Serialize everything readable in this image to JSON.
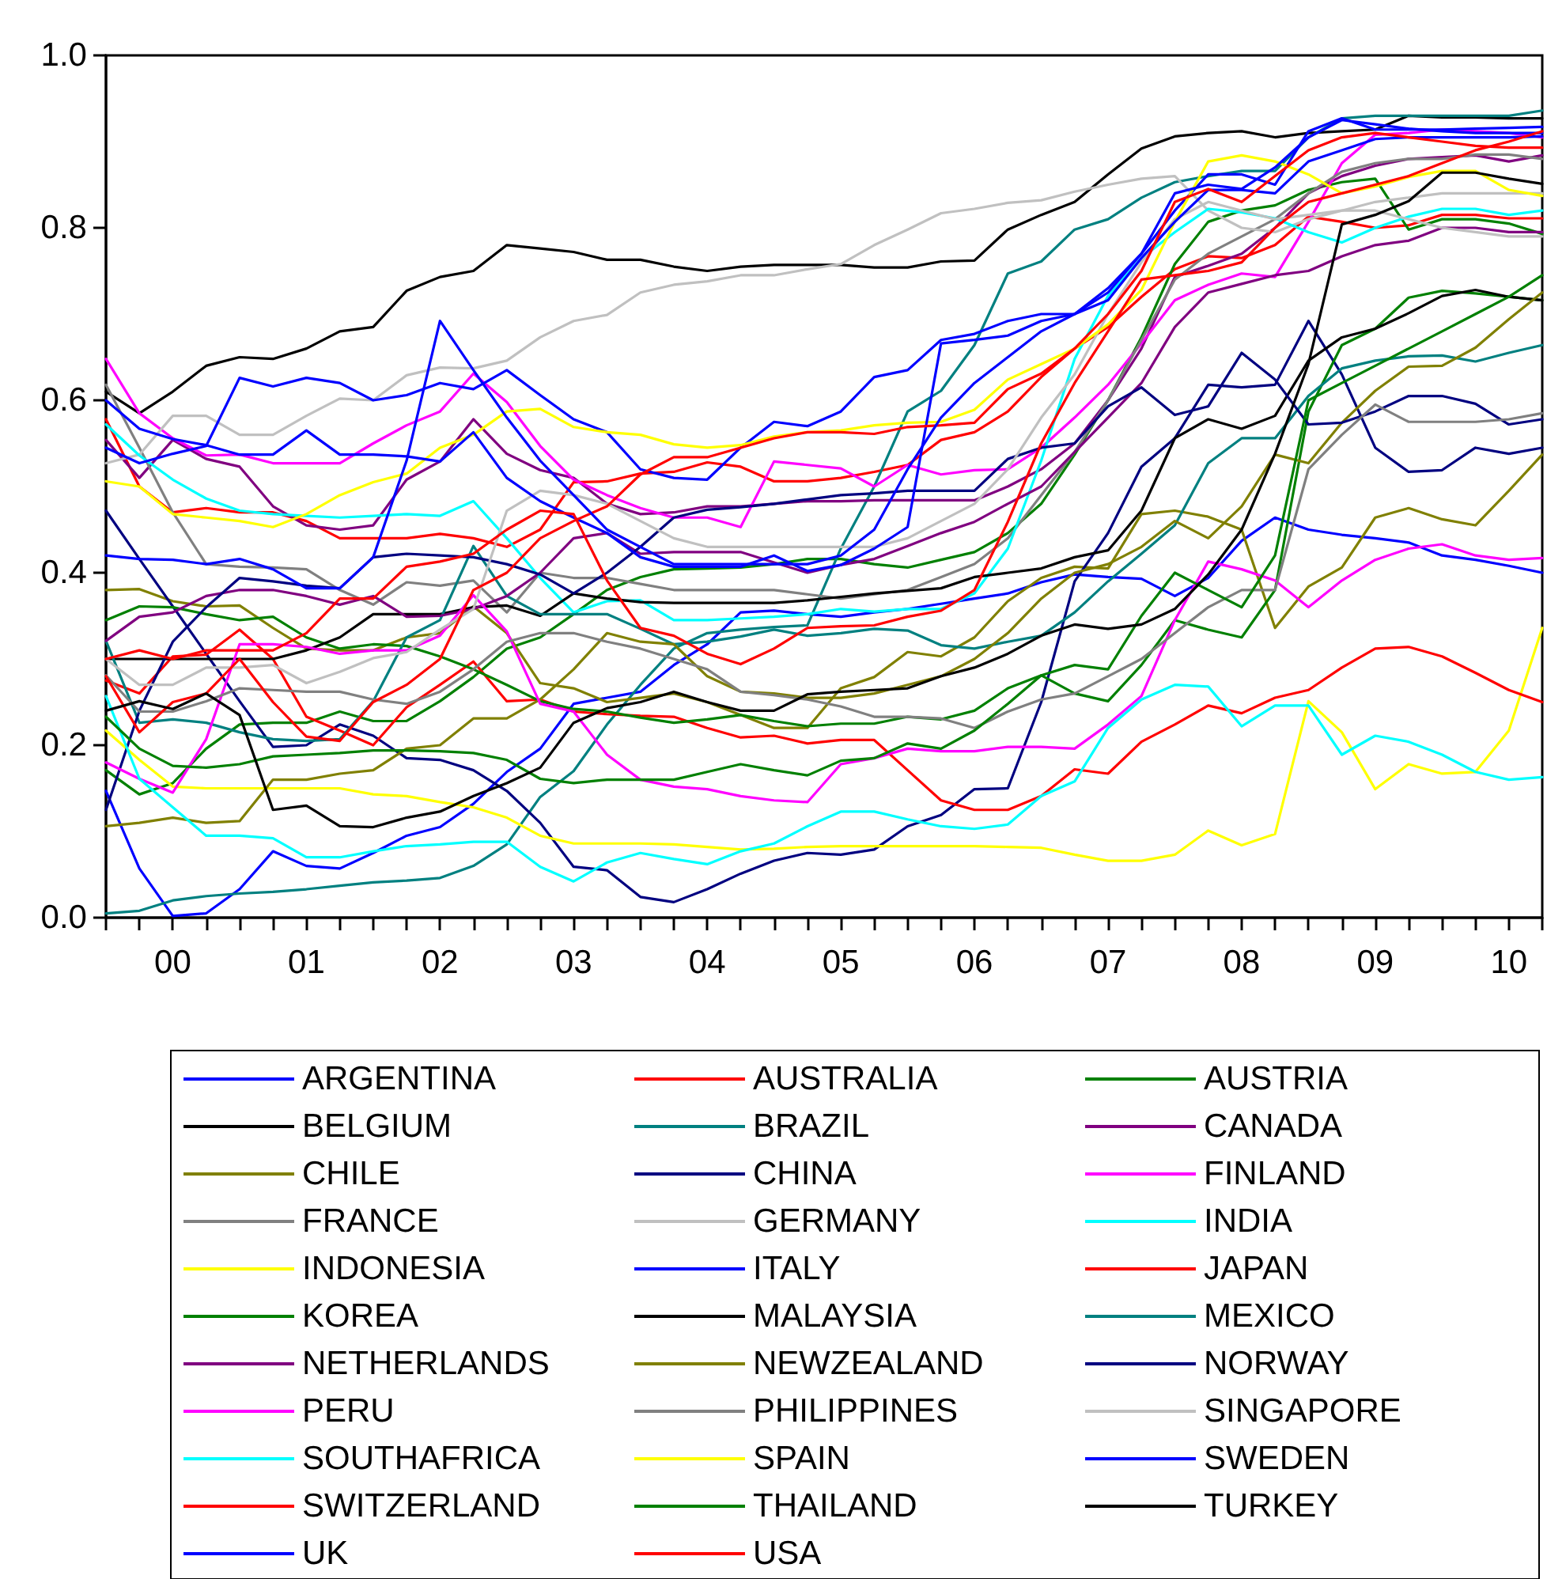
{
  "chart_data": {
    "type": "line",
    "marker": "none",
    "line_style": "solid",
    "legend": "bottom",
    "categories": [
      null,
      null,
      "00",
      null,
      null,
      null,
      "01",
      null,
      null,
      null,
      "02",
      null,
      null,
      null,
      "03",
      null,
      null,
      null,
      "04",
      null,
      null,
      null,
      "05",
      null,
      null,
      null,
      "06",
      null,
      null,
      null,
      "07",
      null,
      null,
      null,
      "08",
      null,
      null,
      null,
      "09",
      null,
      null,
      null,
      "10",
      null
    ],
    "ylim": [
      0,
      1
    ],
    "yticks": [
      {
        "value": 0,
        "label": "0.0"
      },
      {
        "value": 0.2,
        "label": "0.2"
      },
      {
        "value": 0.4,
        "label": "0.4"
      },
      {
        "value": 0.6,
        "label": "0.6"
      },
      {
        "value": 0.8,
        "label": "0.8"
      },
      {
        "value": 1,
        "label": "1.0"
      }
    ],
    "series": [
      {
        "name": "ARGENTINA",
        "color": "#0000ff",
        "values": [
          0.147,
          0.057,
          0.002,
          0.005,
          0.033,
          0.077,
          0.06,
          0.057,
          0.075,
          0.095,
          0.105,
          0.132,
          0.169,
          0.196,
          0.248,
          0.255,
          0.262,
          0.293,
          0.317,
          0.354,
          0.356,
          0.352,
          0.349,
          0.354,
          0.358,
          0.364,
          0.37,
          0.376,
          0.389,
          0.398,
          0.395,
          0.393,
          0.373,
          0.394,
          0.437,
          0.464,
          0.45,
          0.444,
          0.44,
          0.435,
          0.42,
          0.415,
          0.408,
          0.4
        ]
      },
      {
        "name": "AUSTRALIA",
        "color": "#ff0000",
        "values": [
          0.578,
          0.5,
          0.47,
          0.475,
          0.47,
          0.47,
          0.46,
          0.44,
          0.44,
          0.44,
          0.445,
          0.44,
          0.43,
          0.45,
          0.505,
          0.506,
          0.515,
          0.517,
          0.528,
          0.523,
          0.506,
          0.506,
          0.51,
          0.517,
          0.525,
          0.554,
          0.563,
          0.587,
          0.627,
          0.66,
          0.685,
          0.72,
          0.752,
          0.767,
          0.765,
          0.78,
          0.813,
          0.807,
          0.8,
          0.803,
          0.815,
          0.815,
          0.811,
          0.811
        ]
      },
      {
        "name": "AUSTRIA",
        "color": "#008000",
        "values": [
          0.171,
          0.143,
          0.156,
          0.196,
          0.224,
          0.226,
          0.226,
          0.239,
          0.228,
          0.228,
          0.251,
          0.279,
          0.312,
          0.325,
          0.352,
          0.38,
          0.395,
          0.404,
          0.405,
          0.406,
          0.41,
          0.416,
          0.416,
          0.41,
          0.406,
          0.415,
          0.424,
          0.446,
          0.48,
          0.537,
          0.6,
          0.673,
          0.758,
          0.807,
          0.82,
          0.826,
          0.844,
          0.853,
          0.857,
          0.798,
          0.81,
          0.81,
          0.805,
          0.793
        ]
      },
      {
        "name": "BELGIUM",
        "color": "#000000",
        "values": [
          0.61,
          0.585,
          0.61,
          0.64,
          0.65,
          0.648,
          0.66,
          0.68,
          0.685,
          0.727,
          0.743,
          0.75,
          0.78,
          0.776,
          0.772,
          0.763,
          0.763,
          0.755,
          0.75,
          0.755,
          0.757,
          0.757,
          0.757,
          0.754,
          0.754,
          0.761,
          0.762,
          0.798,
          0.815,
          0.83,
          0.862,
          0.892,
          0.906,
          0.91,
          0.912,
          0.905,
          0.91,
          0.912,
          0.914,
          0.93,
          0.928,
          0.928,
          0.927,
          0.927
        ]
      },
      {
        "name": "BRAZIL",
        "color": "#008080",
        "values": [
          0.005,
          0.008,
          0.02,
          0.025,
          0.028,
          0.03,
          0.033,
          0.037,
          0.041,
          0.043,
          0.046,
          0.06,
          0.085,
          0.14,
          0.17,
          0.224,
          0.27,
          0.312,
          0.33,
          0.334,
          0.337,
          0.339,
          0.428,
          0.5,
          0.587,
          0.611,
          0.664,
          0.747,
          0.761,
          0.798,
          0.81,
          0.835,
          0.853,
          0.86,
          0.866,
          0.866,
          0.905,
          0.927,
          0.93,
          0.93,
          0.93,
          0.93,
          0.93,
          0.936
        ]
      },
      {
        "name": "CANADA",
        "color": "#800080",
        "values": [
          0.554,
          0.51,
          0.554,
          0.532,
          0.523,
          0.477,
          0.455,
          0.45,
          0.455,
          0.508,
          0.529,
          0.578,
          0.538,
          0.519,
          0.51,
          0.48,
          0.468,
          0.47,
          0.477,
          0.477,
          0.48,
          0.483,
          0.483,
          0.484,
          0.484,
          0.484,
          0.484,
          0.5,
          0.52,
          0.55,
          0.6,
          0.66,
          0.743,
          0.756,
          0.77,
          0.8,
          0.84,
          0.86,
          0.872,
          0.88,
          0.882,
          0.884,
          0.877,
          0.884
        ]
      },
      {
        "name": "CHILE",
        "color": "#808000",
        "values": [
          0.38,
          0.381,
          0.367,
          0.361,
          0.362,
          0.336,
          0.312,
          0.31,
          0.31,
          0.325,
          0.33,
          0.361,
          0.33,
          0.272,
          0.266,
          0.25,
          0.255,
          0.26,
          0.25,
          0.235,
          0.22,
          0.22,
          0.266,
          0.279,
          0.308,
          0.303,
          0.325,
          0.367,
          0.394,
          0.407,
          0.405,
          0.468,
          0.472,
          0.465,
          0.45,
          0.336,
          0.384,
          0.406,
          0.464,
          0.475,
          0.462,
          0.455,
          0.495,
          0.537
        ]
      },
      {
        "name": "CHINA",
        "color": "#000080",
        "values": [
          0.472,
          0.416,
          0.361,
          0.306,
          0.251,
          0.198,
          0.2,
          0.224,
          0.211,
          0.185,
          0.183,
          0.171,
          0.147,
          0.11,
          0.059,
          0.055,
          0.024,
          0.018,
          0.033,
          0.051,
          0.066,
          0.075,
          0.073,
          0.079,
          0.106,
          0.119,
          0.149,
          0.15,
          0.25,
          0.39,
          0.446,
          0.523,
          0.556,
          0.618,
          0.615,
          0.618,
          0.692,
          0.63,
          0.545,
          0.517,
          0.519,
          0.545,
          0.538,
          0.545
        ]
      },
      {
        "name": "FINLAND",
        "color": "#ff00ff",
        "values": [
          0.648,
          0.585,
          0.556,
          0.536,
          0.537,
          0.527,
          0.527,
          0.527,
          0.55,
          0.571,
          0.587,
          0.631,
          0.598,
          0.547,
          0.508,
          0.49,
          0.475,
          0.464,
          0.464,
          0.453,
          0.529,
          0.525,
          0.521,
          0.5,
          0.525,
          0.514,
          0.519,
          0.52,
          0.545,
          0.58,
          0.618,
          0.666,
          0.716,
          0.734,
          0.747,
          0.743,
          0.807,
          0.875,
          0.908,
          0.91,
          0.914,
          0.912,
          0.91,
          0.905
        ]
      },
      {
        "name": "FRANCE",
        "color": "#808080",
        "values": [
          0.618,
          0.545,
          0.47,
          0.41,
          0.407,
          0.406,
          0.404,
          0.38,
          0.363,
          0.389,
          0.385,
          0.391,
          0.354,
          0.4,
          0.394,
          0.394,
          0.387,
          0.38,
          0.38,
          0.38,
          0.38,
          0.375,
          0.37,
          0.375,
          0.38,
          0.395,
          0.41,
          0.44,
          0.49,
          0.54,
          0.6,
          0.67,
          0.74,
          0.77,
          0.79,
          0.81,
          0.84,
          0.865,
          0.875,
          0.88,
          0.88,
          0.885,
          0.885,
          0.88
        ]
      },
      {
        "name": "GERMANY",
        "color": "#c0c0c0",
        "values": [
          0.527,
          0.537,
          0.582,
          0.582,
          0.56,
          0.56,
          0.582,
          0.602,
          0.6,
          0.629,
          0.638,
          0.637,
          0.646,
          0.673,
          0.692,
          0.699,
          0.725,
          0.734,
          0.738,
          0.745,
          0.745,
          0.752,
          0.758,
          0.78,
          0.798,
          0.817,
          0.822,
          0.829,
          0.832,
          0.842,
          0.85,
          0.857,
          0.86,
          0.82,
          0.8,
          0.795,
          0.81,
          0.82,
          0.83,
          0.835,
          0.84,
          0.84,
          0.84,
          0.84
        ]
      },
      {
        "name": "INDIA",
        "color": "#00ffff",
        "values": [
          0.572,
          0.536,
          0.508,
          0.486,
          0.472,
          0.468,
          0.466,
          0.464,
          0.466,
          0.468,
          0.466,
          0.483,
          0.44,
          0.394,
          0.354,
          0.367,
          0.368,
          0.345,
          0.345,
          0.347,
          0.349,
          0.352,
          0.358,
          0.355,
          0.358,
          0.358,
          0.376,
          0.428,
          0.53,
          0.648,
          0.721,
          0.765,
          0.795,
          0.822,
          0.818,
          0.811,
          0.795,
          0.783,
          0.8,
          0.813,
          0.822,
          0.822,
          0.815,
          0.82
        ]
      },
      {
        "name": "INDONESIA",
        "color": "#ffff00",
        "values": [
          0.217,
          0.183,
          0.152,
          0.15,
          0.15,
          0.15,
          0.15,
          0.15,
          0.143,
          0.141,
          0.134,
          0.128,
          0.116,
          0.095,
          0.086,
          0.086,
          0.086,
          0.085,
          0.082,
          0.079,
          0.08,
          0.082,
          0.083,
          0.083,
          0.083,
          0.083,
          0.083,
          0.082,
          0.081,
          0.073,
          0.066,
          0.066,
          0.073,
          0.101,
          0.084,
          0.097,
          0.251,
          0.215,
          0.149,
          0.178,
          0.167,
          0.169,
          0.217,
          0.336
        ]
      },
      {
        "name": "ITALY",
        "color": "#0000ff",
        "values": [
          0.545,
          0.527,
          0.538,
          0.547,
          0.626,
          0.616,
          0.626,
          0.62,
          0.6,
          0.606,
          0.62,
          0.613,
          0.635,
          0.606,
          0.578,
          0.563,
          0.52,
          0.51,
          0.508,
          0.545,
          0.575,
          0.57,
          0.587,
          0.627,
          0.635,
          0.67,
          0.677,
          0.692,
          0.7,
          0.7,
          0.725,
          0.77,
          0.82,
          0.862,
          0.862,
          0.85,
          0.912,
          0.927,
          0.914,
          0.914,
          0.914,
          0.915,
          0.916,
          0.917
        ]
      },
      {
        "name": "JAPAN",
        "color": "#ff0000",
        "values": [
          0.275,
          0.26,
          0.303,
          0.305,
          0.334,
          0.3,
          0.233,
          0.217,
          0.2,
          0.244,
          0.27,
          0.297,
          0.251,
          0.253,
          0.239,
          0.236,
          0.234,
          0.233,
          0.22,
          0.209,
          0.211,
          0.202,
          0.206,
          0.206,
          0.171,
          0.136,
          0.125,
          0.125,
          0.141,
          0.172,
          0.167,
          0.204,
          0.224,
          0.246,
          0.237,
          0.255,
          0.264,
          0.29,
          0.312,
          0.314,
          0.303,
          0.284,
          0.264,
          0.25
        ]
      },
      {
        "name": "KOREA",
        "color": "#008000",
        "values": [
          0.345,
          0.361,
          0.36,
          0.352,
          0.345,
          0.349,
          0.325,
          0.312,
          0.317,
          0.315,
          0.303,
          0.288,
          0.27,
          0.251,
          0.242,
          0.239,
          0.232,
          0.226,
          0.23,
          0.235,
          0.228,
          0.222,
          0.225,
          0.225,
          0.233,
          0.23,
          0.24,
          0.266,
          0.281,
          0.26,
          0.251,
          0.293,
          0.345,
          0.334,
          0.325,
          0.38,
          0.587,
          0.664,
          0.683,
          0.719,
          0.727,
          0.724,
          0.72,
          0.716
        ]
      },
      {
        "name": "MALAYSIA",
        "color": "#000000",
        "values": [
          0.3,
          0.3,
          0.3,
          0.3,
          0.3,
          0.3,
          0.31,
          0.325,
          0.352,
          0.352,
          0.352,
          0.36,
          0.362,
          0.35,
          0.376,
          0.37,
          0.366,
          0.365,
          0.365,
          0.365,
          0.365,
          0.368,
          0.372,
          0.376,
          0.379,
          0.382,
          0.395,
          0.4,
          0.405,
          0.418,
          0.426,
          0.472,
          0.556,
          0.578,
          0.567,
          0.582,
          0.646,
          0.673,
          0.683,
          0.701,
          0.721,
          0.728,
          0.72,
          0.716
        ]
      },
      {
        "name": "MEXICO",
        "color": "#008080",
        "values": [
          0.321,
          0.226,
          0.23,
          0.226,
          0.215,
          0.207,
          0.205,
          0.207,
          0.251,
          0.325,
          0.345,
          0.431,
          0.373,
          0.352,
          0.352,
          0.352,
          0.335,
          0.317,
          0.32,
          0.326,
          0.334,
          0.327,
          0.33,
          0.335,
          0.333,
          0.316,
          0.312,
          0.32,
          0.327,
          0.354,
          0.39,
          0.422,
          0.455,
          0.527,
          0.556,
          0.556,
          0.605,
          0.637,
          0.646,
          0.651,
          0.652,
          0.645,
          0.655,
          0.664
        ]
      },
      {
        "name": "NETHERLANDS",
        "color": "#800080",
        "values": [
          0.321,
          0.349,
          0.354,
          0.373,
          0.38,
          0.38,
          0.373,
          0.363,
          0.373,
          0.349,
          0.35,
          0.358,
          0.373,
          0.4,
          0.44,
          0.446,
          0.422,
          0.424,
          0.424,
          0.424,
          0.412,
          0.4,
          0.409,
          0.416,
          0.431,
          0.446,
          0.459,
          0.48,
          0.5,
          0.54,
          0.58,
          0.62,
          0.685,
          0.725,
          0.735,
          0.745,
          0.75,
          0.767,
          0.78,
          0.785,
          0.8,
          0.8,
          0.795,
          0.795
        ]
      },
      {
        "name": "NEWZEALAND",
        "color": "#808000",
        "values": [
          0.106,
          0.11,
          0.116,
          0.11,
          0.112,
          0.16,
          0.16,
          0.167,
          0.171,
          0.196,
          0.2,
          0.231,
          0.231,
          0.253,
          0.288,
          0.33,
          0.32,
          0.317,
          0.28,
          0.262,
          0.26,
          0.255,
          0.255,
          0.26,
          0.27,
          0.28,
          0.3,
          0.33,
          0.37,
          0.4,
          0.41,
          0.43,
          0.46,
          0.44,
          0.477,
          0.537,
          0.527,
          0.574,
          0.611,
          0.639,
          0.64,
          0.661,
          0.694,
          0.725
        ]
      },
      {
        "name": "NORWAY",
        "color": "#000080",
        "values": [
          0.125,
          0.24,
          0.32,
          0.36,
          0.394,
          0.39,
          0.385,
          0.382,
          0.418,
          0.422,
          0.42,
          0.418,
          0.41,
          0.398,
          0.376,
          0.4,
          0.43,
          0.464,
          0.473,
          0.476,
          0.48,
          0.485,
          0.49,
          0.492,
          0.495,
          0.495,
          0.495,
          0.532,
          0.545,
          0.55,
          0.593,
          0.615,
          0.583,
          0.593,
          0.655,
          0.624,
          0.572,
          0.574,
          0.587,
          0.605,
          0.605,
          0.596,
          0.572,
          0.578
        ]
      },
      {
        "name": "PERU",
        "color": "#ff00ff",
        "values": [
          0.18,
          0.161,
          0.145,
          0.207,
          0.317,
          0.317,
          0.314,
          0.306,
          0.31,
          0.31,
          0.327,
          0.374,
          0.332,
          0.248,
          0.239,
          0.189,
          0.16,
          0.152,
          0.149,
          0.141,
          0.136,
          0.134,
          0.178,
          0.185,
          0.196,
          0.193,
          0.193,
          0.198,
          0.198,
          0.196,
          0.224,
          0.257,
          0.345,
          0.413,
          0.404,
          0.391,
          0.36,
          0.391,
          0.415,
          0.428,
          0.433,
          0.42,
          0.415,
          0.417
        ]
      },
      {
        "name": "PHILIPPINES",
        "color": "#808080",
        "values": [
          0.281,
          0.239,
          0.239,
          0.251,
          0.266,
          0.264,
          0.262,
          0.262,
          0.253,
          0.248,
          0.262,
          0.288,
          0.32,
          0.33,
          0.33,
          0.32,
          0.312,
          0.3,
          0.288,
          0.262,
          0.258,
          0.253,
          0.245,
          0.233,
          0.233,
          0.231,
          0.22,
          0.239,
          0.253,
          0.26,
          0.28,
          0.3,
          0.33,
          0.36,
          0.38,
          0.38,
          0.52,
          0.56,
          0.595,
          0.575,
          0.575,
          0.575,
          0.578,
          0.585
        ]
      },
      {
        "name": "SINGAPORE",
        "color": "#c0c0c0",
        "values": [
          0.3,
          0.27,
          0.27,
          0.29,
          0.29,
          0.293,
          0.272,
          0.285,
          0.301,
          0.308,
          0.334,
          0.358,
          0.472,
          0.495,
          0.49,
          0.48,
          0.46,
          0.44,
          0.43,
          0.43,
          0.43,
          0.43,
          0.43,
          0.43,
          0.44,
          0.46,
          0.48,
          0.52,
          0.58,
          0.63,
          0.7,
          0.76,
          0.81,
          0.83,
          0.82,
          0.81,
          0.815,
          0.82,
          0.82,
          0.81,
          0.8,
          0.795,
          0.79,
          0.79
        ]
      },
      {
        "name": "SOUTHAFRICA",
        "color": "#00ffff",
        "values": [
          0.257,
          0.161,
          0.128,
          0.095,
          0.095,
          0.092,
          0.07,
          0.07,
          0.077,
          0.083,
          0.085,
          0.088,
          0.088,
          0.059,
          0.042,
          0.064,
          0.075,
          0.068,
          0.062,
          0.077,
          0.086,
          0.106,
          0.123,
          0.123,
          0.114,
          0.106,
          0.103,
          0.108,
          0.141,
          0.158,
          0.22,
          0.253,
          0.27,
          0.268,
          0.222,
          0.246,
          0.246,
          0.189,
          0.211,
          0.204,
          0.189,
          0.169,
          0.16,
          0.163
        ]
      },
      {
        "name": "SPAIN",
        "color": "#ffff00",
        "values": [
          0.506,
          0.5,
          0.468,
          0.464,
          0.46,
          0.453,
          0.468,
          0.49,
          0.505,
          0.515,
          0.545,
          0.56,
          0.587,
          0.59,
          0.569,
          0.563,
          0.56,
          0.549,
          0.545,
          0.548,
          0.558,
          0.563,
          0.565,
          0.571,
          0.574,
          0.575,
          0.589,
          0.624,
          0.642,
          0.66,
          0.688,
          0.728,
          0.807,
          0.877,
          0.884,
          0.877,
          0.862,
          0.84,
          0.848,
          0.859,
          0.866,
          0.866,
          0.844,
          0.837
        ]
      },
      {
        "name": "SWEDEN",
        "color": "#0000ff",
        "values": [
          0.6,
          0.567,
          0.555,
          0.548,
          0.537,
          0.537,
          0.565,
          0.537,
          0.537,
          0.535,
          0.529,
          0.563,
          0.51,
          0.483,
          0.464,
          0.446,
          0.418,
          0.407,
          0.407,
          0.407,
          0.42,
          0.402,
          0.409,
          0.428,
          0.453,
          0.666,
          0.67,
          0.675,
          0.692,
          0.7,
          0.716,
          0.765,
          0.807,
          0.844,
          0.844,
          0.84,
          0.877,
          0.89,
          0.903,
          0.905,
          0.905,
          0.905,
          0.905,
          0.906
        ]
      },
      {
        "name": "SWITZERLAND",
        "color": "#ff0000",
        "values": [
          0.28,
          0.215,
          0.25,
          0.26,
          0.3,
          0.25,
          0.21,
          0.205,
          0.25,
          0.27,
          0.3,
          0.38,
          0.4,
          0.44,
          0.46,
          0.477,
          0.514,
          0.534,
          0.534,
          0.545,
          0.556,
          0.563,
          0.563,
          0.561,
          0.569,
          0.571,
          0.574,
          0.613,
          0.631,
          0.66,
          0.7,
          0.75,
          0.83,
          0.845,
          0.83,
          0.86,
          0.89,
          0.905,
          0.91,
          0.905,
          0.9,
          0.895,
          0.893,
          0.893
        ]
      },
      {
        "name": "THAILAND",
        "color": "#008000",
        "values": [
          0.233,
          0.196,
          0.176,
          0.174,
          0.178,
          0.187,
          0.189,
          0.191,
          0.194,
          0.194,
          0.193,
          0.191,
          0.183,
          0.161,
          0.156,
          0.16,
          0.16,
          0.16,
          0.169,
          0.178,
          0.171,
          0.165,
          0.182,
          0.185,
          0.202,
          0.196,
          0.217,
          0.248,
          0.281,
          0.293,
          0.288,
          0.35,
          0.4,
          0.38,
          0.36,
          0.42,
          0.6,
          0.62,
          0.64,
          0.66,
          0.68,
          0.7,
          0.72,
          0.745
        ]
      },
      {
        "name": "TURKEY",
        "color": "#000000",
        "values": [
          0.24,
          0.251,
          0.242,
          0.26,
          0.235,
          0.125,
          0.13,
          0.106,
          0.105,
          0.116,
          0.123,
          0.141,
          0.156,
          0.174,
          0.226,
          0.243,
          0.25,
          0.262,
          0.25,
          0.24,
          0.24,
          0.259,
          0.262,
          0.264,
          0.266,
          0.28,
          0.29,
          0.306,
          0.327,
          0.34,
          0.335,
          0.34,
          0.358,
          0.398,
          0.45,
          0.538,
          0.642,
          0.804,
          0.815,
          0.831,
          0.864,
          0.864,
          0.857,
          0.851
        ]
      },
      {
        "name": "UK",
        "color": "#0000ff",
        "values": [
          0.42,
          0.416,
          0.415,
          0.41,
          0.416,
          0.404,
          0.382,
          0.382,
          0.418,
          0.53,
          0.692,
          0.635,
          0.58,
          0.53,
          0.49,
          0.45,
          0.43,
          0.41,
          0.41,
          0.41,
          0.41,
          0.41,
          0.42,
          0.45,
          0.52,
          0.58,
          0.62,
          0.65,
          0.68,
          0.7,
          0.73,
          0.77,
          0.84,
          0.85,
          0.845,
          0.87,
          0.905,
          0.925,
          0.92,
          0.915,
          0.912,
          0.91,
          0.91,
          0.91
        ]
      },
      {
        "name": "USA",
        "color": "#ff0000",
        "values": [
          0.3,
          0.31,
          0.3,
          0.31,
          0.31,
          0.31,
          0.33,
          0.37,
          0.37,
          0.407,
          0.413,
          0.422,
          0.45,
          0.472,
          0.468,
          0.391,
          0.336,
          0.327,
          0.306,
          0.294,
          0.312,
          0.336,
          0.338,
          0.339,
          0.349,
          0.356,
          0.38,
          0.459,
          0.55,
          0.62,
          0.68,
          0.74,
          0.745,
          0.75,
          0.76,
          0.8,
          0.83,
          0.84,
          0.85,
          0.86,
          0.875,
          0.89,
          0.9,
          0.912
        ]
      }
    ]
  }
}
